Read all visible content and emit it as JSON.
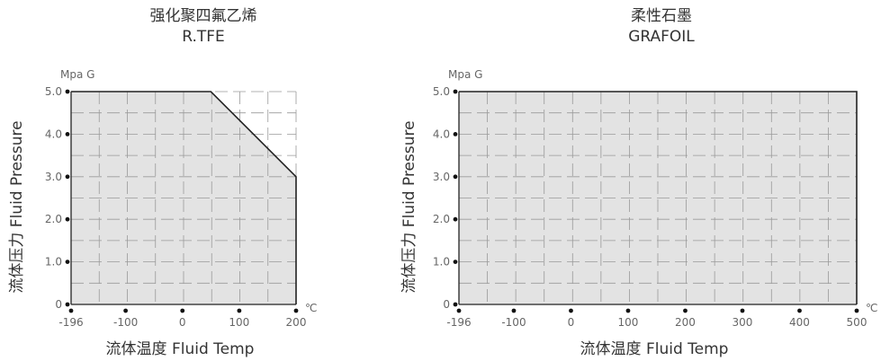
{
  "chart_data": [
    {
      "type": "area",
      "title": "强化聚四氟乙烯",
      "subtitle": "R.TFE",
      "xlabel": "流体温度 Fluid Temp",
      "ylabel": "流体压力 Fluid Pressure",
      "y_unit": "Mpa G",
      "x_unit": "℃",
      "x_ticks": [
        -196,
        -100,
        0,
        100,
        200
      ],
      "y_ticks": [
        0,
        1.0,
        2.0,
        3.0,
        4.0,
        5.0
      ],
      "x_tick_labels": [
        "-196",
        "-100",
        "0",
        "100",
        "200"
      ],
      "y_tick_labels": [
        "0",
        "1.0",
        "2.0",
        "3.0",
        "4.0",
        "5.0"
      ],
      "xlim": [
        -196,
        200
      ],
      "ylim": [
        0,
        5.0
      ],
      "grid": true,
      "series": [
        {
          "x": [
            -196,
            50,
            200,
            200
          ],
          "y": [
            5.0,
            5.0,
            3.0,
            0
          ]
        }
      ],
      "colors": {
        "fill": "#e3e3e3",
        "line": "#222222",
        "grid": "#9a9a9a",
        "text": "#333333"
      }
    },
    {
      "type": "area",
      "title": "柔性石墨",
      "subtitle": "GRAFOIL",
      "xlabel": "流体温度 Fluid Temp",
      "ylabel": "流体压力 Fluid Pressure",
      "y_unit": "Mpa G",
      "x_unit": "℃",
      "x_ticks": [
        -196,
        -100,
        0,
        100,
        200,
        300,
        400,
        500
      ],
      "y_ticks": [
        0,
        1.0,
        2.0,
        3.0,
        4.0,
        5.0
      ],
      "x_tick_labels": [
        "-196",
        "-100",
        "0",
        "100",
        "200",
        "300",
        "400",
        "500"
      ],
      "y_tick_labels": [
        "0",
        "1.0",
        "2.0",
        "3.0",
        "4.0",
        "5.0"
      ],
      "xlim": [
        -196,
        500
      ],
      "ylim": [
        0,
        5.0
      ],
      "grid": true,
      "series": [
        {
          "x": [
            -196,
            500,
            500
          ],
          "y": [
            5.0,
            5.0,
            0
          ]
        }
      ],
      "colors": {
        "fill": "#e3e3e3",
        "line": "#222222",
        "grid": "#9a9a9a",
        "text": "#333333"
      }
    }
  ]
}
